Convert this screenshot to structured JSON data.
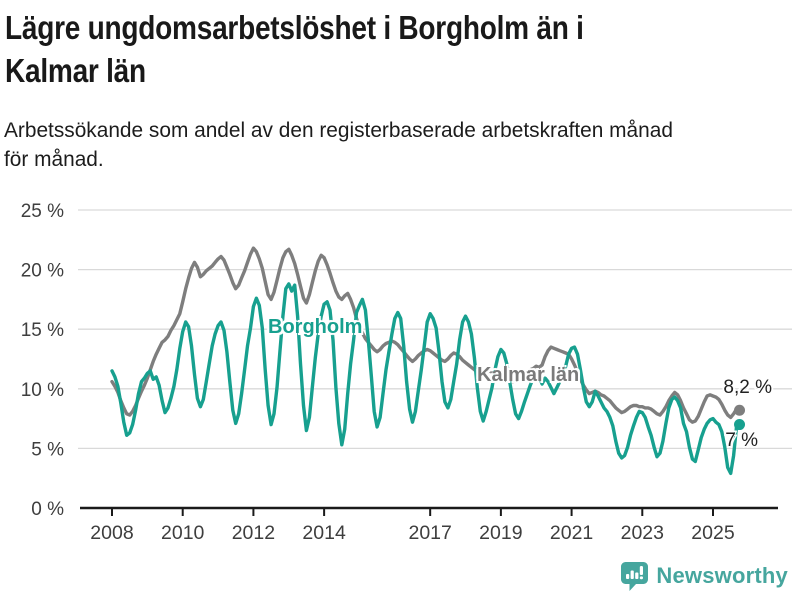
{
  "header": {
    "title_lines": [
      "Lägre ungdomsarbetslöshet i Borgholm än i",
      "Kalmar län"
    ],
    "subtitle_lines": [
      "Arbetssökande som andel av den registerbaserade arbetskraften månad",
      "för månad."
    ]
  },
  "footer": {
    "brand": "Newsworthy",
    "brand_color": "#46a69e"
  },
  "chart_data": {
    "type": "line",
    "title": "Lägre ungdomsarbetslöshet i Borgholm än i Kalmar län",
    "subtitle": "Arbetssökande som andel av den registerbaserade arbetskraften månad för månad.",
    "x_unit": "month",
    "x_start": "2008-01",
    "x_end": "2025-10",
    "x_tick_years": [
      2008,
      2010,
      2012,
      2014,
      2017,
      2019,
      2021,
      2023,
      2025
    ],
    "ylim": [
      0,
      25
    ],
    "y_ticks": [
      0,
      5,
      10,
      15,
      20,
      25
    ],
    "y_tick_suffix": " %",
    "grid": "horizontal",
    "legend_position": "inline-labels",
    "colors": {
      "grid": "#d9d9d9",
      "axis": "#1a1a1a",
      "tick_text": "#3e3e3e"
    },
    "series": [
      {
        "name": "Kalmar län",
        "color": "#7e7e7e",
        "end_label": "8,2 %",
        "end_value": 8.2,
        "values": [
          10.6,
          10.2,
          9.7,
          9.0,
          8.4,
          7.9,
          7.8,
          8.1,
          8.6,
          9.2,
          9.8,
          10.3,
          10.9,
          11.6,
          12.3,
          12.9,
          13.4,
          13.9,
          14.1,
          14.4,
          14.9,
          15.3,
          15.8,
          16.3,
          17.3,
          18.4,
          19.3,
          20.1,
          20.6,
          20.2,
          19.4,
          19.6,
          19.9,
          20.1,
          20.3,
          20.6,
          20.9,
          21.1,
          20.8,
          20.2,
          19.6,
          18.9,
          18.4,
          18.7,
          19.3,
          19.9,
          20.6,
          21.3,
          21.8,
          21.5,
          20.9,
          20.1,
          19.0,
          17.9,
          17.5,
          18.1,
          19.1,
          20.1,
          21.0,
          21.5,
          21.7,
          21.2,
          20.5,
          19.6,
          18.6,
          17.6,
          17.2,
          17.9,
          18.9,
          19.9,
          20.7,
          21.2,
          21.0,
          20.4,
          19.7,
          18.9,
          18.2,
          17.7,
          17.5,
          17.8,
          18.0,
          17.5,
          16.8,
          15.9,
          15.2,
          14.7,
          14.2,
          13.9,
          13.6,
          13.3,
          13.1,
          13.3,
          13.6,
          13.8,
          13.9,
          14.0,
          13.9,
          13.7,
          13.4,
          13.1,
          12.8,
          12.5,
          12.3,
          12.5,
          12.8,
          13.0,
          13.2,
          13.3,
          13.2,
          13.0,
          12.8,
          12.6,
          12.4,
          12.3,
          12.5,
          12.8,
          13.0,
          12.9,
          12.7,
          12.4,
          12.2,
          12.0,
          11.8,
          11.6,
          11.4,
          11.2,
          11.1,
          11.3,
          11.5,
          11.4,
          11.2,
          11.0,
          10.9,
          10.8,
          10.7,
          10.6,
          10.6,
          10.7,
          10.9,
          11.1,
          11.3,
          11.5,
          11.6,
          11.7,
          11.9,
          11.8,
          12.0,
          12.7,
          13.2,
          13.5,
          13.4,
          13.3,
          13.2,
          13.1,
          13.0,
          12.9,
          12.5,
          12.0,
          11.4,
          10.8,
          10.3,
          9.9,
          9.6,
          9.7,
          9.8,
          9.7,
          9.5,
          9.4,
          9.2,
          9.0,
          8.7,
          8.4,
          8.2,
          8.0,
          8.1,
          8.3,
          8.5,
          8.6,
          8.6,
          8.5,
          8.5,
          8.4,
          8.4,
          8.3,
          8.1,
          7.9,
          7.8,
          8.1,
          8.5,
          9.0,
          9.4,
          9.7,
          9.5,
          9.0,
          8.4,
          7.9,
          7.4,
          7.2,
          7.3,
          7.7,
          8.3,
          8.9,
          9.4,
          9.5,
          9.4,
          9.3,
          9.1,
          8.7,
          8.2,
          7.8,
          7.6,
          7.9,
          8.3,
          8.2
        ]
      },
      {
        "name": "Borgholm",
        "color": "#17a08f",
        "end_label": "7 %",
        "end_value": 7.0,
        "values": [
          11.5,
          11.0,
          10.2,
          8.8,
          7.2,
          6.1,
          6.3,
          7.0,
          8.2,
          9.6,
          10.6,
          10.9,
          11.3,
          11.5,
          10.8,
          11.0,
          10.3,
          9.0,
          8.0,
          8.4,
          9.2,
          10.2,
          11.6,
          13.4,
          14.8,
          15.6,
          15.2,
          13.6,
          11.2,
          9.2,
          8.5,
          9.1,
          10.6,
          12.1,
          13.6,
          14.6,
          15.3,
          15.6,
          14.9,
          13.1,
          10.6,
          8.2,
          7.1,
          7.9,
          9.6,
          11.6,
          13.6,
          15.1,
          16.9,
          17.6,
          17.0,
          15.1,
          11.6,
          8.6,
          7.0,
          7.9,
          10.1,
          13.1,
          16.1,
          18.4,
          18.8,
          18.2,
          18.7,
          16.1,
          12.1,
          8.6,
          6.5,
          7.6,
          10.1,
          12.6,
          14.6,
          16.1,
          17.1,
          17.3,
          16.6,
          14.1,
          10.1,
          7.1,
          5.3,
          6.6,
          9.6,
          12.1,
          14.1,
          16.4,
          17.0,
          17.5,
          16.6,
          14.1,
          11.1,
          8.1,
          6.8,
          7.6,
          9.6,
          11.6,
          13.1,
          14.6,
          15.9,
          16.4,
          15.9,
          13.6,
          10.6,
          8.3,
          7.2,
          8.1,
          9.9,
          11.6,
          13.6,
          15.6,
          16.3,
          15.9,
          15.1,
          13.1,
          10.6,
          8.9,
          8.4,
          9.1,
          10.6,
          12.1,
          14.1,
          15.6,
          16.1,
          15.6,
          14.6,
          12.6,
          10.1,
          8.1,
          7.3,
          8.1,
          9.1,
          10.1,
          11.6,
          12.7,
          13.3,
          13.0,
          12.1,
          10.6,
          9.1,
          7.9,
          7.5,
          8.1,
          8.9,
          9.6,
          10.3,
          10.9,
          11.3,
          11.0,
          10.4,
          10.9,
          10.6,
          10.1,
          9.6,
          10.1,
          10.6,
          11.1,
          11.9,
          12.9,
          13.4,
          13.5,
          12.9,
          11.6,
          10.1,
          8.9,
          8.5,
          8.9,
          9.8,
          9.4,
          8.9,
          8.4,
          8.1,
          7.6,
          6.9,
          5.6,
          4.6,
          4.2,
          4.4,
          5.1,
          6.1,
          6.9,
          7.6,
          8.1,
          8.0,
          7.6,
          6.8,
          6.1,
          5.1,
          4.3,
          4.6,
          5.6,
          7.1,
          8.4,
          9.1,
          9.3,
          9.0,
          8.4,
          7.1,
          6.4,
          5.1,
          4.1,
          3.9,
          4.9,
          5.9,
          6.6,
          7.1,
          7.4,
          7.5,
          7.2,
          7.0,
          6.4,
          5.1,
          3.4,
          2.9,
          4.4,
          6.9,
          7.0
        ]
      }
    ]
  }
}
